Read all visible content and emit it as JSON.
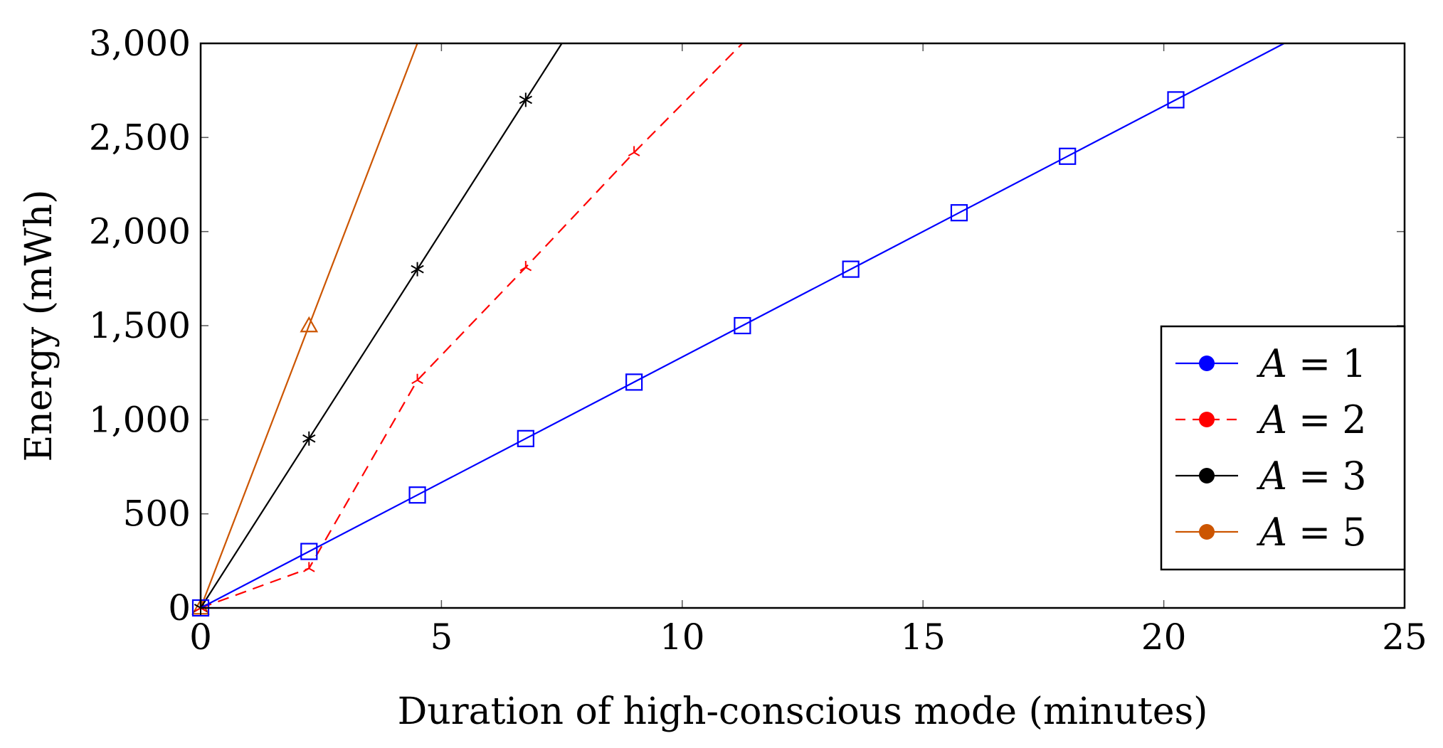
{
  "chart_data": {
    "type": "line",
    "title": "",
    "xlabel": "Duration of high-conscious mode (minutes)",
    "ylabel": "Energy (mWh)",
    "xlim": [
      0,
      25
    ],
    "ylim": [
      0,
      3000
    ],
    "xticks": [
      0,
      5,
      10,
      15,
      20,
      25
    ],
    "yticks": [
      0,
      500,
      1000,
      1500,
      2000,
      2500,
      3000
    ],
    "xtick_labels": [
      "0",
      "5",
      "10",
      "15",
      "20",
      "25"
    ],
    "ytick_labels": [
      "0",
      "500",
      "1,000",
      "1,500",
      "2,000",
      "2,500",
      "3,000"
    ],
    "grid": "major ticks on all sides",
    "legend_position": "lower-right",
    "series": [
      {
        "name": "A = 1",
        "var": "A",
        "op": "=",
        "num": "1",
        "color": "#0000ff",
        "dash": "solid",
        "marker": "square",
        "x": [
          0,
          2.25,
          4.5,
          6.75,
          9,
          11.25,
          13.5,
          15.75,
          18,
          20.25,
          22.5
        ],
        "y": [
          0,
          300,
          600,
          900,
          1200,
          1500,
          1800,
          2100,
          2400,
          2700,
          3000
        ],
        "marker_indices": [
          0,
          1,
          2,
          3,
          4,
          5,
          6,
          7,
          8,
          9
        ]
      },
      {
        "name": "A = 2",
        "var": "A",
        "op": "=",
        "num": "2",
        "color": "#ff0000",
        "dash": "dashed",
        "marker": "three-pointed-star",
        "x": [
          0,
          2.25,
          4.5,
          6.75,
          9,
          11.25
        ],
        "y": [
          0,
          210,
          1210,
          1810,
          2420,
          3000
        ],
        "marker_indices": [
          0,
          1,
          2,
          3,
          4
        ]
      },
      {
        "name": "A = 3",
        "var": "A",
        "op": "=",
        "num": "3",
        "color": "#000000",
        "dash": "solid",
        "marker": "asterisk",
        "x": [
          0,
          2.25,
          4.5,
          6.75,
          7.5
        ],
        "y": [
          0,
          900,
          1800,
          2700,
          3000
        ],
        "marker_indices": [
          0,
          1,
          2,
          3
        ]
      },
      {
        "name": "A = 5",
        "var": "A",
        "op": "=",
        "num": "5",
        "color": "#cc5500",
        "dash": "solid",
        "marker": "triangle",
        "x": [
          0,
          2.25,
          4.5
        ],
        "y": [
          0,
          1500,
          3000
        ],
        "marker_indices": [
          0,
          1
        ]
      }
    ]
  }
}
